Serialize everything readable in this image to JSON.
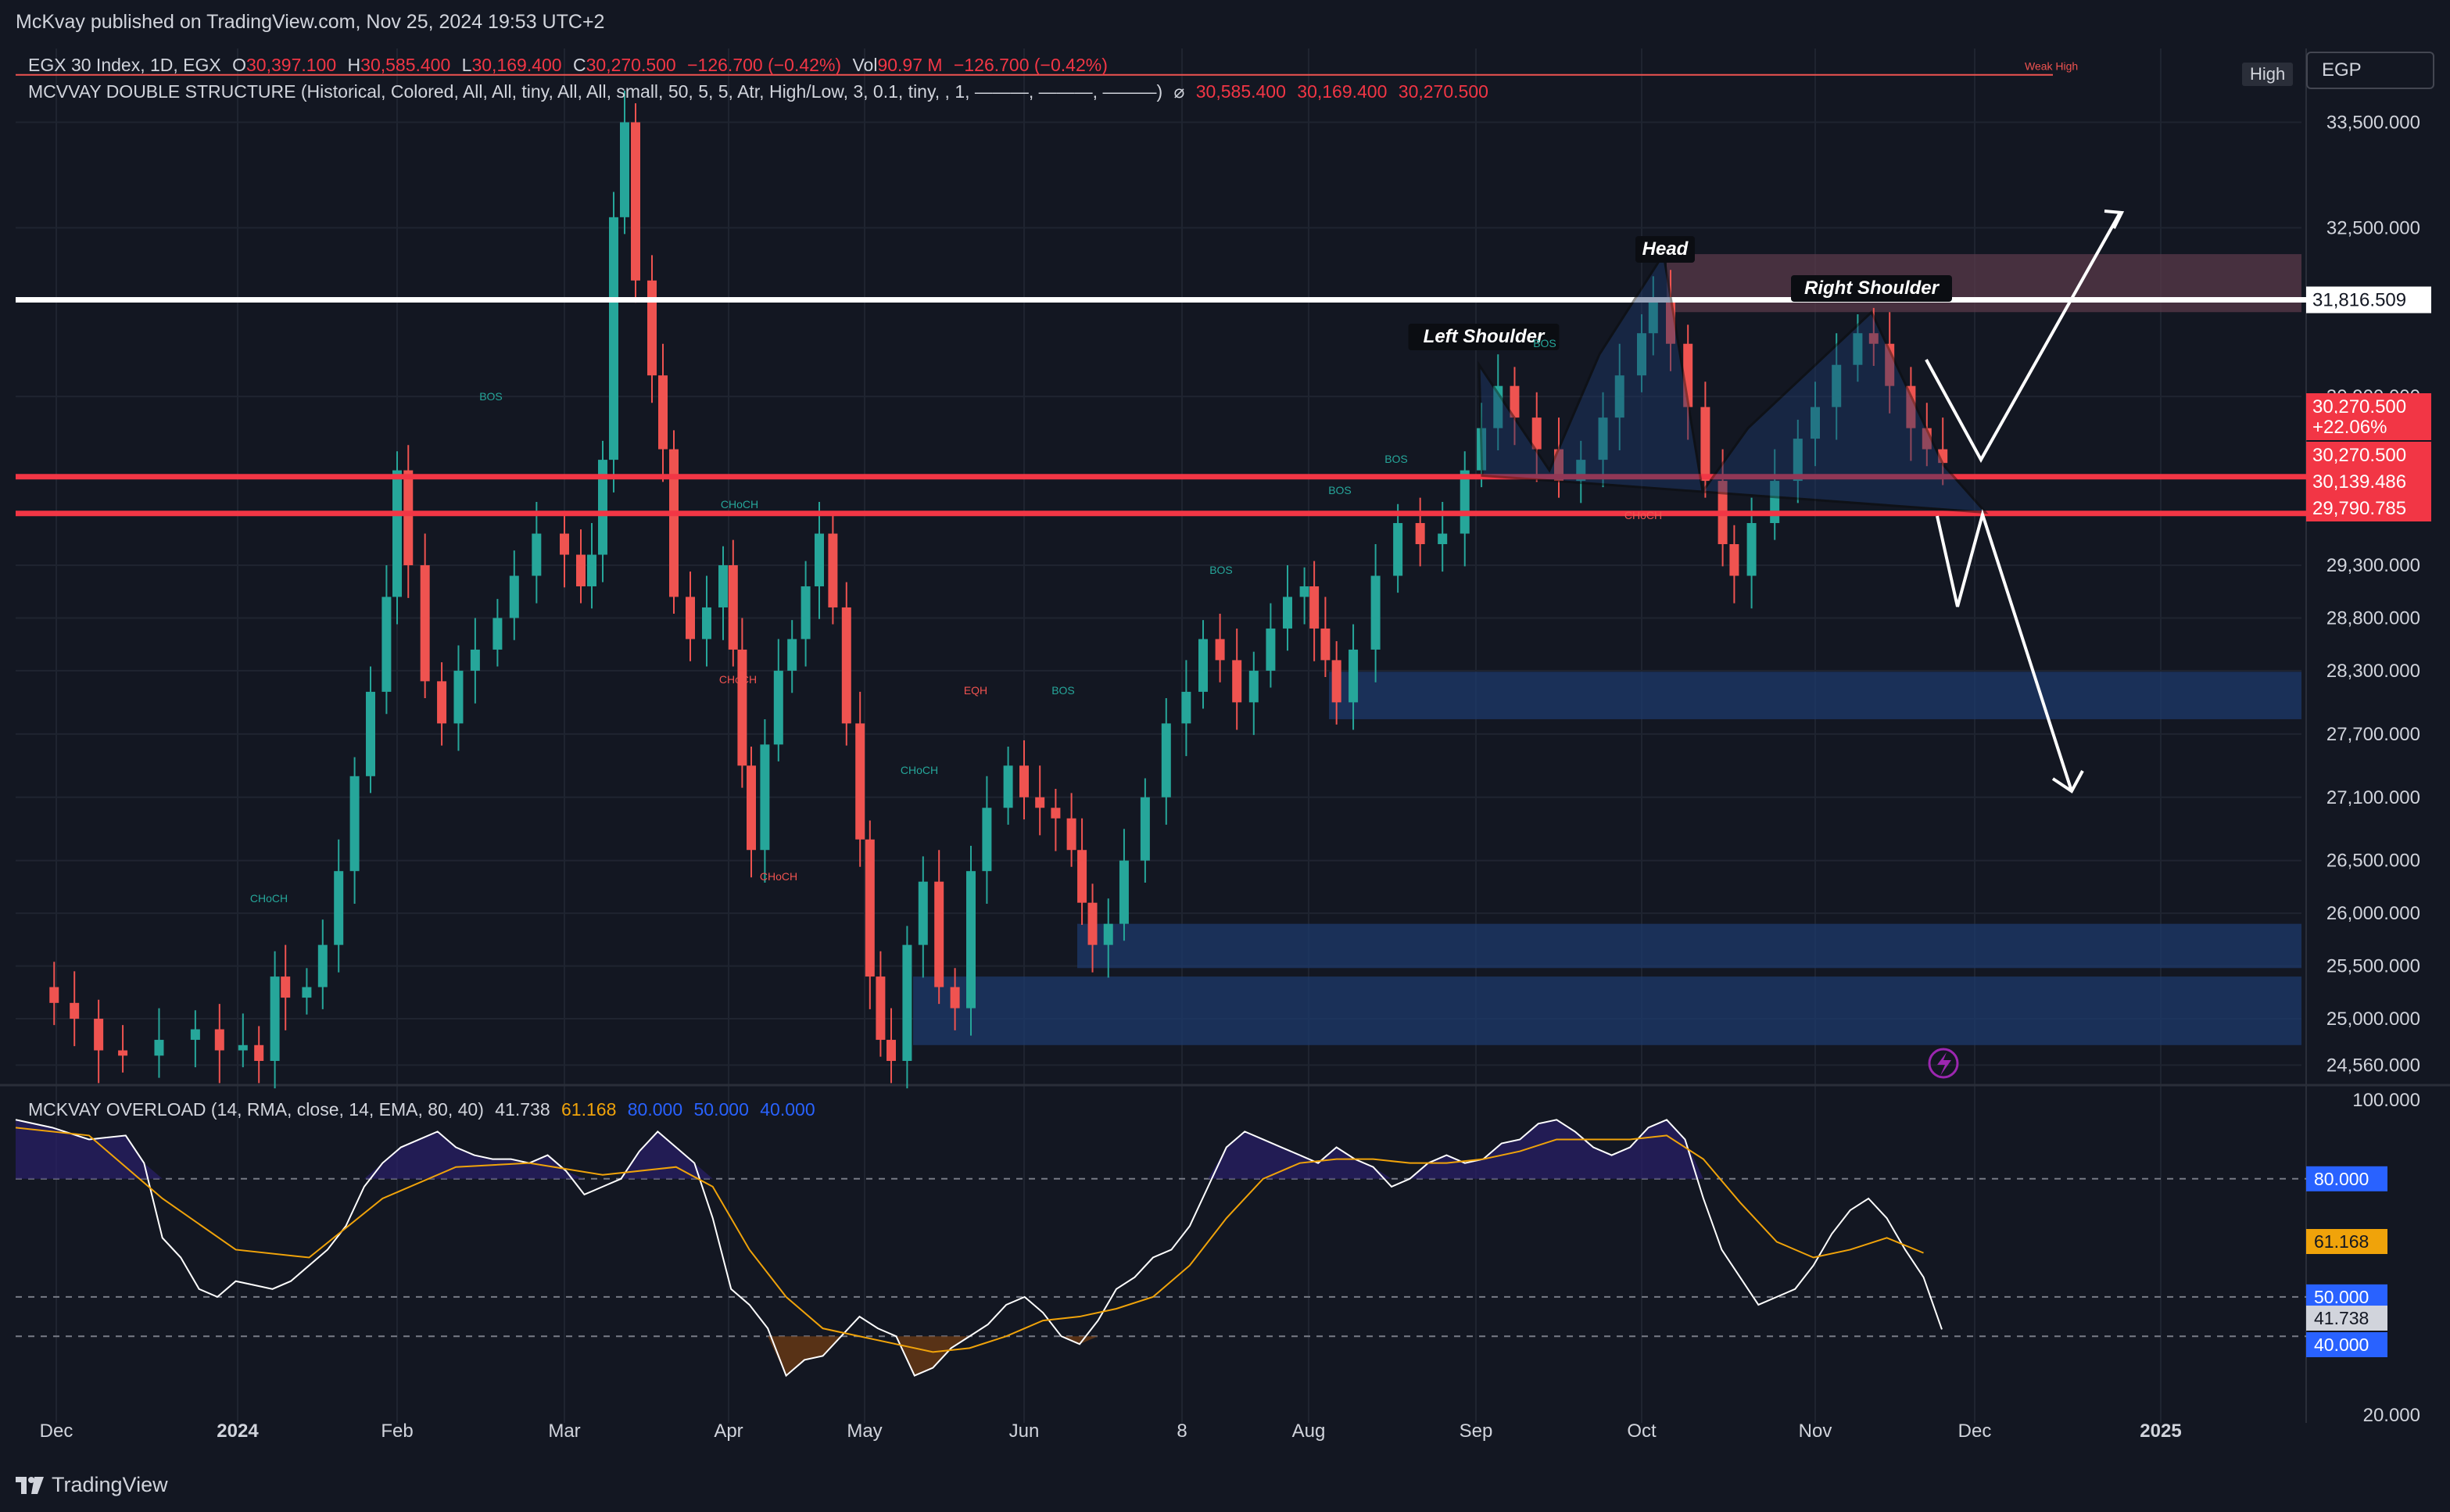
{
  "header": {
    "publisher": "McKvay published on TradingView.com, Nov 25, 2024 19:53 UTC+2"
  },
  "legend1": {
    "symbol": "EGX 30 Index, 1D, EGX",
    "o_label": "O",
    "o": "30,397.100",
    "h_label": "H",
    "h": "30,585.400",
    "l_label": "L",
    "l": "30,169.400",
    "c_label": "C",
    "c": "30,270.500",
    "chg": "−126.700 (−0.42%)",
    "vol_label": "Vol",
    "vol": "90.97 M",
    "vol_chg": "−126.700 (−0.42%)"
  },
  "legend2": {
    "name": "MCVVAY DOUBLE STRUCTURE (Historical, Colored, All, All, tiny, All, All, small, 50, 5, 5, Atr, High/Low, 3, 0.1, tiny, , 1, ———, ———, ———)",
    "sym": "⌀",
    "v1": "30,585.400",
    "v2": "30,169.400",
    "v3": "30,270.500"
  },
  "legend3": {
    "name": "MCKVAY OVERLOAD (14, RMA, close, 14, EMA, 80, 40)",
    "v1": "41.738",
    "v2": "61.168",
    "v3": "80.000",
    "v4": "50.000",
    "v5": "40.000"
  },
  "currency": "EGP",
  "high_tag": "High",
  "weak_high": "Weak High",
  "footer": {
    "logo": "TradingView"
  },
  "colors": {
    "bg": "#131722",
    "up": "#26a69a",
    "down": "#ef5350",
    "accent_red": "#f23645",
    "blue_zone": "#1e3a6b",
    "orange": "#f0a30a",
    "blue_level": "#2962ff"
  },
  "chart_data": [
    {
      "type": "candlestick",
      "title": "EGX 30 Index, 1D, EGX",
      "x_ticks": [
        "Dec",
        "2024",
        "Feb",
        "Mar",
        "Apr",
        "May",
        "Jun",
        "8",
        "Aug",
        "Sep",
        "Oct",
        "Nov",
        "Dec",
        "2025"
      ],
      "y_ticks": [
        "33,500.000",
        "32,500.000",
        "30,900.000",
        "29,300.000",
        "28,800.000",
        "28,300.000",
        "27,700.000",
        "27,100.000",
        "26,500.000",
        "26,000.000",
        "25,500.000",
        "25,000.000",
        "24,560.000"
      ],
      "ylim": [
        24400,
        34200
      ],
      "price_labels": [
        {
          "text": "31,816.509",
          "style": "white"
        },
        {
          "text": "30,270.500",
          "style": "red"
        },
        {
          "text": "+22.06%",
          "style": "red"
        },
        {
          "text": "30,270.500",
          "style": "red"
        },
        {
          "text": "30,139.486",
          "style": "red"
        },
        {
          "text": "29,790.785",
          "style": "red"
        }
      ],
      "horizontal_levels": [
        {
          "price": 31816.509,
          "color": "white"
        },
        {
          "price": 30139.486,
          "color": "red"
        },
        {
          "price": 29790.785,
          "color": "red"
        }
      ],
      "annotations": [
        "Head",
        "Left Shoulder",
        "Right Shoulder",
        "BOS",
        "CHoCH",
        "EQH"
      ],
      "close_path": [
        [
          "Nov 27",
          25300
        ],
        [
          "Nov 30",
          25150
        ],
        [
          "Dec 4",
          25000
        ],
        [
          "Dec 8",
          24700
        ],
        [
          "Dec 12",
          24650
        ],
        [
          "Dec 18",
          24800
        ],
        [
          "Dec 24",
          24900
        ],
        [
          "Dec 28",
          24700
        ],
        [
          "Jan 2",
          24750
        ],
        [
          "Jan 5",
          24600
        ],
        [
          "Jan 8",
          25400
        ],
        [
          "Jan 10",
          25200
        ],
        [
          "Jan 14",
          25300
        ],
        [
          "Jan 17",
          25700
        ],
        [
          "Jan 20",
          26400
        ],
        [
          "Jan 23",
          27300
        ],
        [
          "Jan 26",
          28100
        ],
        [
          "Jan 29",
          29000
        ],
        [
          "Jan 31",
          30200
        ],
        [
          "Feb 3",
          29300
        ],
        [
          "Feb 6",
          28200
        ],
        [
          "Feb 9",
          27800
        ],
        [
          "Feb 12",
          28300
        ],
        [
          "Feb 15",
          28500
        ],
        [
          "Feb 19",
          28800
        ],
        [
          "Feb 22",
          29200
        ],
        [
          "Feb 26",
          29600
        ],
        [
          "Mar 1",
          29400
        ],
        [
          "Mar 4",
          29100
        ],
        [
          "Mar 6",
          29400
        ],
        [
          "Mar 8",
          30300
        ],
        [
          "Mar 10",
          32600
        ],
        [
          "Mar 12",
          33500
        ],
        [
          "Mar 14",
          32000
        ],
        [
          "Mar 17",
          31100
        ],
        [
          "Mar 19",
          30400
        ],
        [
          "Mar 21",
          29000
        ],
        [
          "Mar 24",
          28600
        ],
        [
          "Mar 27",
          28900
        ],
        [
          "Mar 30",
          29300
        ],
        [
          "Apr 2",
          28500
        ],
        [
          "Apr 4",
          27400
        ],
        [
          "Apr 6",
          26600
        ],
        [
          "Apr 9",
          27600
        ],
        [
          "Apr 12",
          28300
        ],
        [
          "Apr 15",
          28600
        ],
        [
          "Apr 18",
          29100
        ],
        [
          "Apr 21",
          29600
        ],
        [
          "Apr 24",
          28900
        ],
        [
          "Apr 27",
          27800
        ],
        [
          "Apr 30",
          26700
        ],
        [
          "May 2",
          25400
        ],
        [
          "May 4",
          24800
        ],
        [
          "May 6",
          24600
        ],
        [
          "May 9",
          25700
        ],
        [
          "May 12",
          26300
        ],
        [
          "May 15",
          25300
        ],
        [
          "May 18",
          25100
        ],
        [
          "May 21",
          26400
        ],
        [
          "May 24",
          27000
        ],
        [
          "May 28",
          27400
        ],
        [
          "Jun 1",
          27100
        ],
        [
          "Jun 4",
          27000
        ],
        [
          "Jun 7",
          26900
        ],
        [
          "Jun 10",
          26600
        ],
        [
          "Jun 12",
          26100
        ],
        [
          "Jun 14",
          25700
        ],
        [
          "Jun 17",
          25900
        ],
        [
          "Jun 20",
          26500
        ],
        [
          "Jun 24",
          27100
        ],
        [
          "Jun 28",
          27800
        ],
        [
          "Jul 2",
          28100
        ],
        [
          "Jul 6",
          28600
        ],
        [
          "Jul 10",
          28400
        ],
        [
          "Jul 14",
          28000
        ],
        [
          "Jul 18",
          28300
        ],
        [
          "Jul 22",
          28700
        ],
        [
          "Jul 26",
          29000
        ],
        [
          "Jul 30",
          29100
        ],
        [
          "Aug 2",
          28700
        ],
        [
          "Aug 4",
          28400
        ],
        [
          "Aug 6",
          28000
        ],
        [
          "Aug 9",
          28500
        ],
        [
          "Aug 13",
          29200
        ],
        [
          "Aug 17",
          29700
        ],
        [
          "Aug 21",
          29500
        ],
        [
          "Aug 25",
          29600
        ],
        [
          "Aug 29",
          30200
        ],
        [
          "Sep 2",
          30600
        ],
        [
          "Sep 5",
          31000
        ],
        [
          "Sep 8",
          30700
        ],
        [
          "Sep 12",
          30400
        ],
        [
          "Sep 16",
          30100
        ],
        [
          "Sep 20",
          30300
        ],
        [
          "Sep 24",
          30700
        ],
        [
          "Sep 27",
          31100
        ],
        [
          "Oct 1",
          31500
        ],
        [
          "Oct 3",
          31800
        ],
        [
          "Oct 6",
          31400
        ],
        [
          "Oct 9",
          30800
        ],
        [
          "Oct 12",
          30100
        ],
        [
          "Oct 15",
          29500
        ],
        [
          "Oct 17",
          29200
        ],
        [
          "Oct 20",
          29700
        ],
        [
          "Oct 24",
          30100
        ],
        [
          "Oct 28",
          30500
        ],
        [
          "Nov 1",
          30800
        ],
        [
          "Nov 5",
          31200
        ],
        [
          "Nov 9",
          31500
        ],
        [
          "Nov 12",
          31400
        ],
        [
          "Nov 15",
          31000
        ],
        [
          "Nov 19",
          30600
        ],
        [
          "Nov 22",
          30400
        ],
        [
          "Nov 25",
          30270
        ]
      ]
    },
    {
      "type": "line",
      "title": "MCKVAY OVERLOAD (14, RMA, close, 14, EMA, 80, 40)",
      "y_ticks": [
        "100.000",
        "80.000",
        "50.000",
        "41.738",
        "40.000",
        "20.000"
      ],
      "ylim": [
        18,
        103
      ],
      "levels": [
        80,
        50,
        40
      ],
      "level_labels": [
        {
          "text": "80.000",
          "style": "blue"
        },
        {
          "text": "61.168",
          "style": "orange"
        },
        {
          "text": "50.000",
          "style": "blue"
        },
        {
          "text": "41.738",
          "style": "grey"
        },
        {
          "text": "40.000",
          "style": "blue"
        }
      ],
      "series": [
        {
          "values": [
            [
              0,
              95
            ],
            [
              2,
              93
            ],
            [
              4,
              90
            ],
            [
              6,
              91
            ],
            [
              7,
              84
            ],
            [
              8,
              65
            ],
            [
              9,
              60
            ],
            [
              10,
              52
            ],
            [
              11,
              50
            ],
            [
              12,
              54
            ],
            [
              13,
              53
            ],
            [
              14,
              52
            ],
            [
              15,
              54
            ],
            [
              16,
              58
            ],
            [
              17,
              62
            ],
            [
              18,
              68
            ],
            [
              19,
              78
            ],
            [
              20,
              84
            ],
            [
              21,
              88
            ],
            [
              22,
              90
            ],
            [
              23,
              92
            ],
            [
              24,
              88
            ],
            [
              25,
              86
            ],
            [
              26,
              85
            ],
            [
              27,
              85
            ],
            [
              28,
              84
            ],
            [
              29,
              86
            ],
            [
              30,
              82
            ],
            [
              31,
              76
            ],
            [
              32,
              78
            ],
            [
              33,
              80
            ],
            [
              34,
              87
            ],
            [
              35,
              92
            ],
            [
              36,
              88
            ],
            [
              37,
              84
            ],
            [
              38,
              70
            ],
            [
              39,
              52
            ],
            [
              40,
              48
            ],
            [
              41,
              42
            ],
            [
              42,
              30
            ],
            [
              43,
              34
            ],
            [
              44,
              35
            ],
            [
              45,
              40
            ],
            [
              46,
              45
            ],
            [
              47,
              42
            ],
            [
              48,
              40
            ],
            [
              49,
              30
            ],
            [
              50,
              32
            ],
            [
              51,
              37
            ],
            [
              52,
              40
            ],
            [
              53,
              43
            ],
            [
              54,
              48
            ],
            [
              55,
              50
            ],
            [
              56,
              46
            ],
            [
              57,
              40
            ],
            [
              58,
              38
            ],
            [
              59,
              44
            ],
            [
              60,
              52
            ],
            [
              61,
              55
            ],
            [
              62,
              60
            ],
            [
              63,
              62
            ],
            [
              64,
              68
            ],
            [
              65,
              78
            ],
            [
              66,
              88
            ],
            [
              67,
              92
            ],
            [
              68,
              90
            ],
            [
              69,
              88
            ],
            [
              70,
              86
            ],
            [
              71,
              84
            ],
            [
              72,
              88
            ],
            [
              73,
              85
            ],
            [
              74,
              83
            ],
            [
              75,
              78
            ],
            [
              76,
              80
            ],
            [
              77,
              84
            ],
            [
              78,
              86
            ],
            [
              79,
              84
            ],
            [
              80,
              85
            ],
            [
              81,
              89
            ],
            [
              82,
              90
            ],
            [
              83,
              94
            ],
            [
              84,
              95
            ],
            [
              85,
              92
            ],
            [
              86,
              88
            ],
            [
              87,
              86
            ],
            [
              88,
              88
            ],
            [
              89,
              93
            ],
            [
              90,
              95
            ],
            [
              91,
              90
            ],
            [
              92,
              75
            ],
            [
              93,
              62
            ],
            [
              94,
              55
            ],
            [
              95,
              48
            ],
            [
              96,
              50
            ],
            [
              97,
              52
            ],
            [
              98,
              58
            ],
            [
              99,
              66
            ],
            [
              100,
              72
            ],
            [
              101,
              75
            ],
            [
              102,
              70
            ],
            [
              103,
              62
            ],
            [
              104,
              55
            ],
            [
              105,
              41.738
            ]
          ]
        },
        {
          "values": [
            [
              0,
              93
            ],
            [
              4,
              91
            ],
            [
              8,
              75
            ],
            [
              12,
              62
            ],
            [
              16,
              60
            ],
            [
              20,
              75
            ],
            [
              24,
              83
            ],
            [
              28,
              84
            ],
            [
              32,
              81
            ],
            [
              36,
              83
            ],
            [
              38,
              78
            ],
            [
              40,
              62
            ],
            [
              42,
              50
            ],
            [
              44,
              42
            ],
            [
              46,
              40
            ],
            [
              48,
              38
            ],
            [
              50,
              36
            ],
            [
              52,
              37
            ],
            [
              54,
              40
            ],
            [
              56,
              44
            ],
            [
              58,
              45
            ],
            [
              60,
              47
            ],
            [
              62,
              50
            ],
            [
              64,
              58
            ],
            [
              66,
              70
            ],
            [
              68,
              80
            ],
            [
              70,
              84
            ],
            [
              72,
              85
            ],
            [
              74,
              85
            ],
            [
              76,
              84
            ],
            [
              78,
              84
            ],
            [
              80,
              85
            ],
            [
              82,
              87
            ],
            [
              84,
              90
            ],
            [
              86,
              90
            ],
            [
              88,
              90
            ],
            [
              90,
              91
            ],
            [
              92,
              85
            ],
            [
              94,
              74
            ],
            [
              96,
              64
            ],
            [
              98,
              60
            ],
            [
              100,
              62
            ],
            [
              102,
              65
            ],
            [
              104,
              61.168
            ]
          ]
        }
      ]
    }
  ]
}
